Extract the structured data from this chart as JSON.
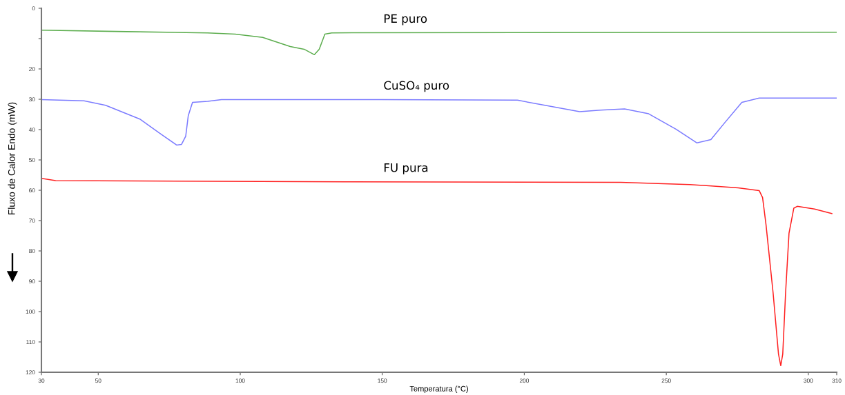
{
  "chart_data": {
    "type": "line",
    "xlabel": "Temperatura (°C)",
    "ylabel": "Fluxo de Calor Endo (mW)",
    "xlim": [
      30,
      310
    ],
    "ylim": [
      120,
      0
    ],
    "xticks": [
      30,
      50,
      100,
      150,
      200,
      250,
      300,
      310
    ],
    "yticks": [
      0,
      {
        "value": 10,
        "label": null
      },
      20,
      30,
      40,
      50,
      60,
      70,
      80,
      90,
      100,
      110,
      120
    ],
    "grid": false,
    "legend": false,
    "marker": "none",
    "line_style": "solid",
    "series": [
      {
        "name": "PE puro",
        "color": "#5cad4e",
        "x": [
          30,
          60,
          88.5,
          98.2,
          107.9,
          117.6,
          122.5,
          126.1,
          127.8,
          129.8,
          132.2,
          200,
          310
        ],
        "values": [
          7.2,
          7.7,
          8.1,
          8.5,
          9.6,
          12.6,
          13.5,
          15.3,
          13.5,
          8.5,
          8.1,
          8.0,
          7.9
        ]
      },
      {
        "name": "CuSO₄ puro",
        "color": "#7b7bff",
        "x": [
          30,
          45,
          52.6,
          64.8,
          72.1,
          77.6,
          79.3,
          80.8,
          81.7,
          83.2,
          88.5,
          93.4,
          150,
          197.6,
          207.3,
          219.5,
          226.8,
          235.3,
          243.8,
          253.5,
          260.8,
          265.7,
          270.6,
          276.6,
          282.7,
          310
        ],
        "values": [
          30.1,
          30.5,
          32.0,
          36.6,
          41.5,
          45.1,
          44.9,
          42.2,
          35.4,
          31.0,
          30.7,
          30.1,
          30.1,
          30.3,
          32.0,
          34.1,
          33.6,
          33.2,
          34.8,
          39.9,
          44.4,
          43.3,
          37.7,
          31.0,
          29.6,
          29.6
        ]
      },
      {
        "name": "FU pura",
        "color": "#ff2020",
        "x": [
          30,
          35,
          137,
          234,
          258.3,
          275.3,
          282.7,
          283.9,
          285.1,
          287.6,
          289.5,
          290.3,
          291,
          292,
          293.2,
          294.9,
          296.1,
          302.2,
          308.3
        ],
        "values": [
          56.1,
          56.8,
          57.2,
          57.4,
          58.1,
          59.2,
          60.1,
          62.4,
          71.3,
          93.8,
          114,
          117.8,
          114,
          93.8,
          74.2,
          65.9,
          65.3,
          66.2,
          67.7
        ]
      }
    ]
  }
}
